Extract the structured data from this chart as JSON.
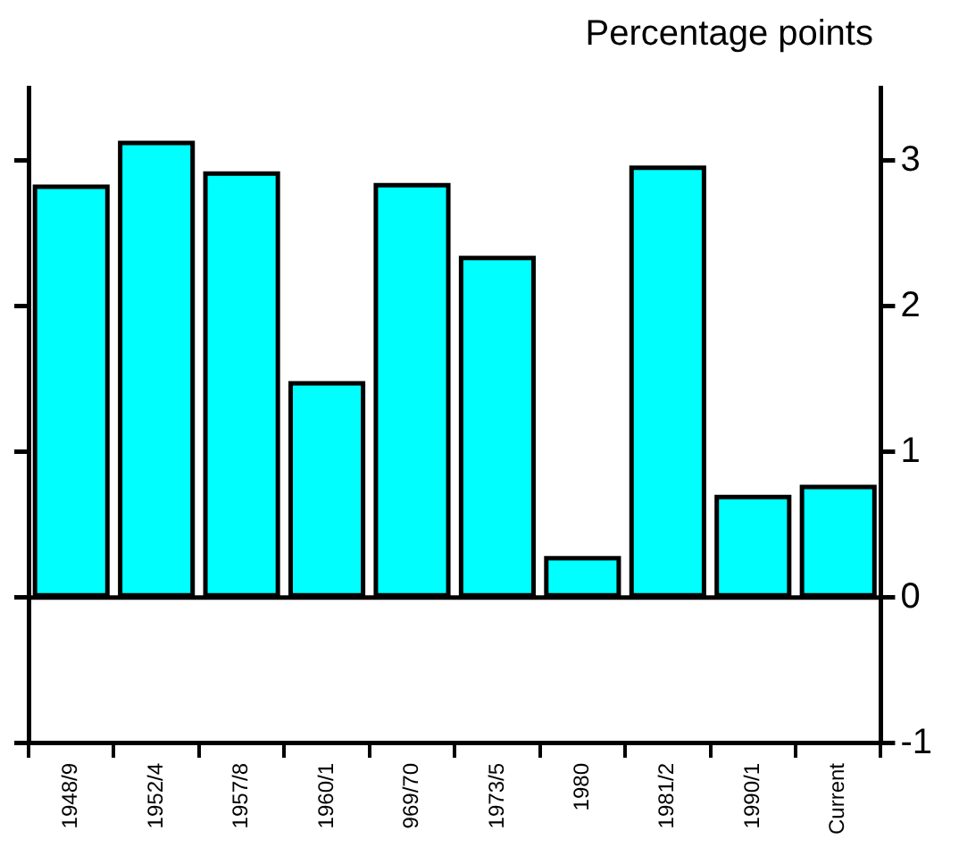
{
  "chart_data": {
    "type": "bar",
    "ylabel": "Percentage points",
    "categories": [
      "1948/9",
      "1952/4",
      "1957/8",
      "1960/1",
      "969/70",
      "1973/5",
      "1980",
      "1981/2",
      "1990/1",
      "Current"
    ],
    "values": [
      2.82,
      3.12,
      2.91,
      1.47,
      2.83,
      2.33,
      0.27,
      2.95,
      0.69,
      0.76
    ],
    "color": "#00ffff",
    "ylim": [
      -1,
      3.5
    ],
    "yticks": [
      -1,
      0,
      1,
      2,
      3
    ],
    "grid": false,
    "legend": false,
    "ref_lines": [
      {
        "axis": "y",
        "value": 0,
        "color": "#000000"
      }
    ]
  }
}
